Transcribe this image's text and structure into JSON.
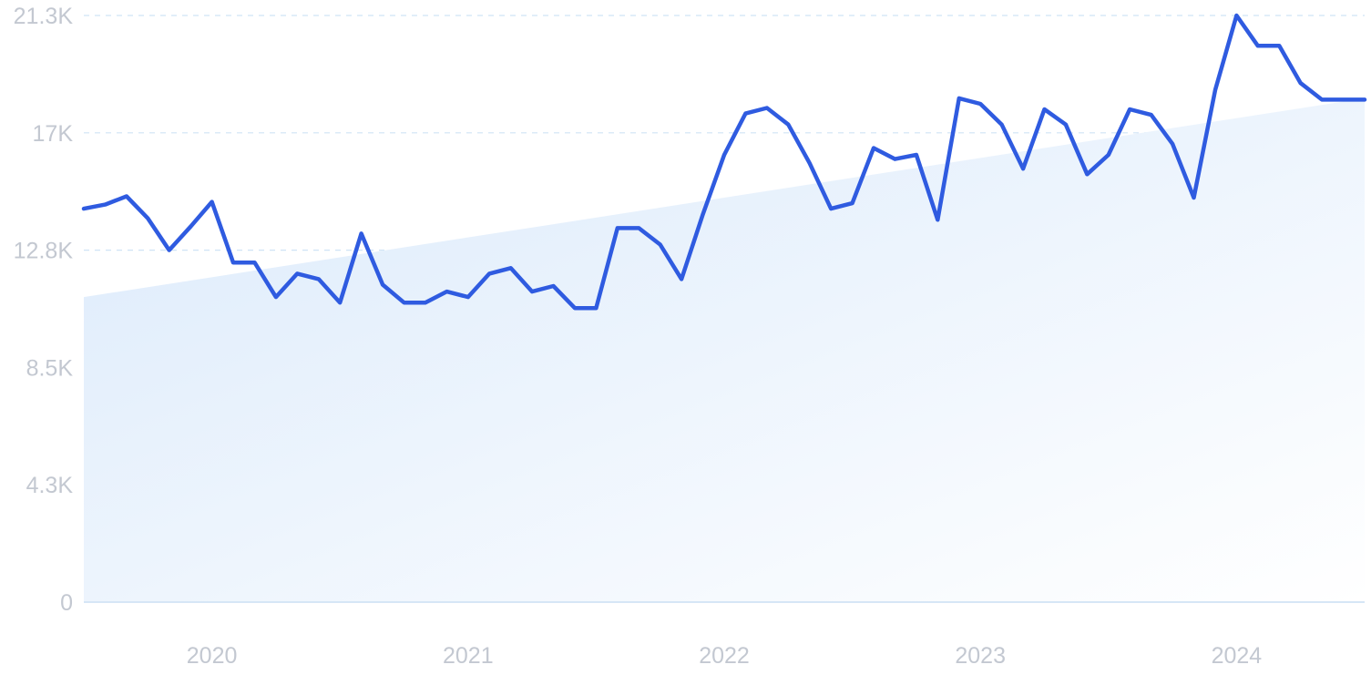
{
  "chart_data": {
    "type": "line",
    "title": "",
    "xlabel": "",
    "ylabel": "",
    "y_ticks": [
      "0",
      "4.3K",
      "8.5K",
      "12.8K",
      "17K",
      "21.3K"
    ],
    "y_tick_values": [
      0,
      4250,
      8500,
      12750,
      17000,
      21250
    ],
    "ylim": [
      0,
      21250
    ],
    "x_ticks": [
      "2020",
      "2021",
      "2022",
      "2023",
      "2024"
    ],
    "x_tick_values": [
      "2020-01",
      "2021-01",
      "2022-01",
      "2023-01",
      "2024-01"
    ],
    "xlim": [
      "2019-07",
      "2024-07"
    ],
    "grid": true,
    "legend": "none",
    "line_color": "#2f5be0",
    "trend_fill_color": "#dbeafb",
    "trend": {
      "x": [
        "2019-07",
        "2024-07"
      ],
      "y": [
        11050,
        18250
      ]
    },
    "x": [
      "2019-07",
      "2019-08",
      "2019-09",
      "2019-10",
      "2019-11",
      "2019-12",
      "2020-01",
      "2020-02",
      "2020-03",
      "2020-04",
      "2020-05",
      "2020-06",
      "2020-07",
      "2020-08",
      "2020-09",
      "2020-10",
      "2020-11",
      "2020-12",
      "2021-01",
      "2021-02",
      "2021-03",
      "2021-04",
      "2021-05",
      "2021-06",
      "2021-07",
      "2021-08",
      "2021-09",
      "2021-10",
      "2021-11",
      "2021-12",
      "2022-01",
      "2022-02",
      "2022-03",
      "2022-04",
      "2022-05",
      "2022-06",
      "2022-07",
      "2022-08",
      "2022-09",
      "2022-10",
      "2022-11",
      "2022-12",
      "2023-01",
      "2023-02",
      "2023-03",
      "2023-04",
      "2023-05",
      "2023-06",
      "2023-07",
      "2023-08",
      "2023-09",
      "2023-10",
      "2023-11",
      "2023-12",
      "2024-01",
      "2024-02",
      "2024-03",
      "2024-04",
      "2024-05",
      "2024-06",
      "2024-07"
    ],
    "series": [
      {
        "values": [
          14250,
          14400,
          14700,
          13900,
          12750,
          13600,
          14500,
          12300,
          12300,
          11050,
          11900,
          11700,
          10850,
          13350,
          11500,
          10850,
          10850,
          11250,
          11050,
          11900,
          12100,
          11250,
          11450,
          10650,
          10650,
          13550,
          13550,
          12950,
          11700,
          14050,
          16200,
          17700,
          17900,
          17300,
          15900,
          14250,
          14450,
          16450,
          16050,
          16200,
          13850,
          18250,
          18050,
          17300,
          15700,
          17850,
          17300,
          15500,
          16200,
          17850,
          17650,
          16600,
          14650,
          18550,
          21250,
          20150,
          20150,
          18800,
          18200,
          18200,
          18200
        ]
      }
    ]
  }
}
